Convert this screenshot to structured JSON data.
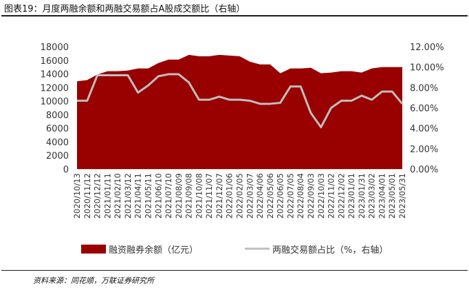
{
  "figure": {
    "title": "图表19：月度两融余额和两融交易额占A股成交额比（右轴）",
    "source": "资料来源：同花顺，万联证券研究所"
  },
  "colors": {
    "area": "#990000",
    "line": "#bfbfbf"
  },
  "chart_data": {
    "type": "area",
    "categories": [
      "2020/10/13",
      "2020/11/12",
      "2020/12/12",
      "2021/01/11",
      "2021/02/10",
      "2021/03/12",
      "2021/04/11",
      "2021/05/11",
      "2021/06/10",
      "2021/07/10",
      "2021/08/09",
      "2021/09/08",
      "2021/10/08",
      "2021/11/07",
      "2021/12/07",
      "2022/01/06",
      "2022/02/05",
      "2022/03/07",
      "2022/04/06",
      "2022/05/06",
      "2022/06/05",
      "2022/07/05",
      "2022/08/04",
      "2022/09/03",
      "2022/10/03",
      "2022/11/02",
      "2022/12/02",
      "2023/01/01",
      "2023/01/31",
      "2023/03/02",
      "2023/04/01",
      "2023/05/01",
      "2023/05/31"
    ],
    "series": [
      {
        "name": "融资融券余额（亿元）",
        "axis": "left",
        "type": "area",
        "values": [
          12900,
          13100,
          13900,
          14400,
          14400,
          14500,
          14800,
          14800,
          15600,
          16100,
          16100,
          16800,
          16600,
          16600,
          16800,
          16700,
          16600,
          15800,
          15400,
          15400,
          14100,
          14800,
          14800,
          14900,
          14100,
          14200,
          14400,
          14400,
          14200,
          14800,
          15000,
          15000,
          15000
        ]
      },
      {
        "name": "两融交易额占比（%，右轴）",
        "axis": "right",
        "type": "line",
        "values": [
          6.7,
          6.7,
          9.2,
          9.2,
          9.2,
          9.2,
          7.5,
          8.2,
          9.1,
          9.3,
          9.3,
          8.5,
          6.8,
          6.8,
          7.1,
          6.8,
          6.8,
          6.7,
          6.4,
          6.4,
          6.5,
          8.1,
          8.1,
          5.5,
          4.1,
          6.0,
          6.7,
          6.7,
          7.2,
          6.8,
          7.6,
          7.6,
          6.4
        ]
      }
    ],
    "y_left": {
      "min": 0,
      "max": 18000,
      "ticks": [
        "0",
        "2000",
        "4000",
        "6000",
        "8000",
        "10000",
        "12000",
        "14000",
        "16000",
        "18000"
      ]
    },
    "y_right": {
      "min": 0,
      "max": 12,
      "ticks": [
        "0.00%",
        "2.00%",
        "4.00%",
        "6.00%",
        "8.00%",
        "10.00%",
        "12.00%"
      ]
    },
    "legend": {
      "position": "bottom",
      "items": [
        {
          "label": "融资融券余额（亿元）",
          "kind": "area"
        },
        {
          "label": "两融交易额占比（%，右轴）",
          "kind": "line"
        }
      ]
    }
  }
}
